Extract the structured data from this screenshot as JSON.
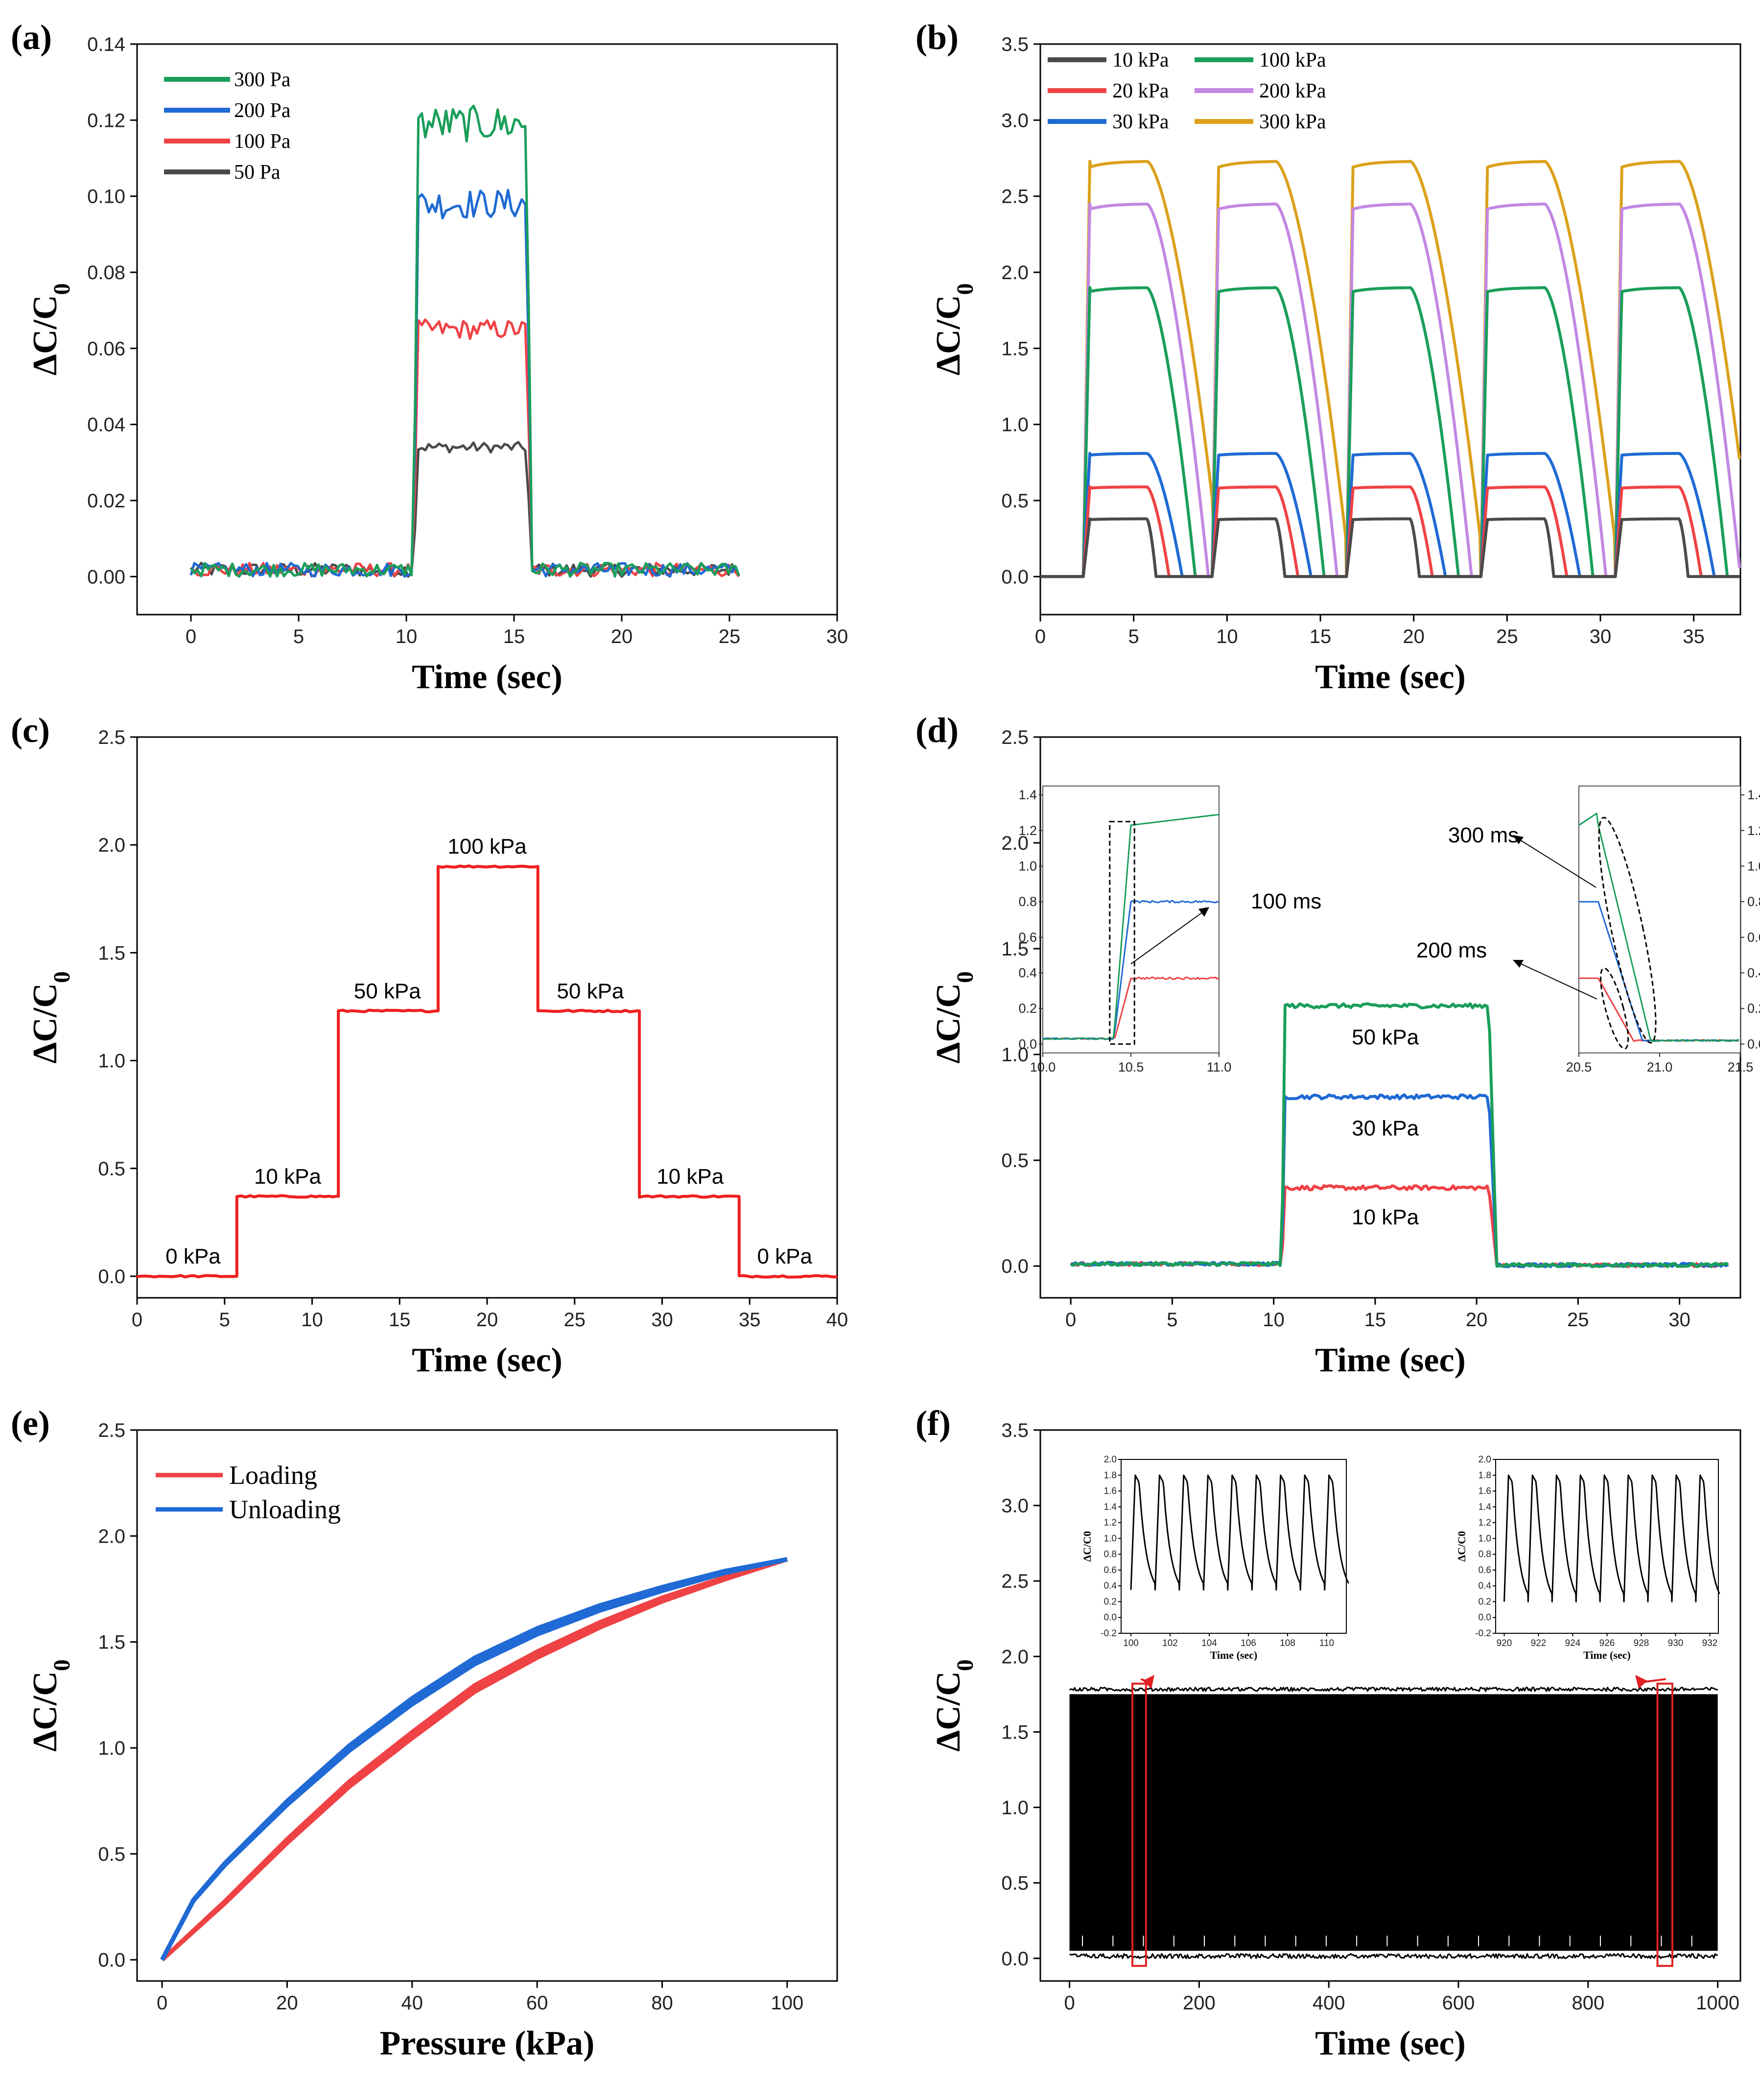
{
  "chart_data": [
    {
      "id": "a",
      "panel_label": "(a)",
      "type": "line",
      "xlabel": "Time (sec)",
      "ylabel": "ΔC/C0",
      "xlim": [
        -2.5,
        30
      ],
      "ylim": [
        -0.01,
        0.14
      ],
      "xticks": [
        "0",
        "5",
        "10",
        "15",
        "20",
        "25",
        "30"
      ],
      "yticks": [
        "0.00",
        "0.02",
        "0.04",
        "0.06",
        "0.08",
        "0.10",
        "0.12",
        "0.14"
      ],
      "legend": "top-left",
      "pulse": {
        "start": 10.3,
        "end": 15.6,
        "duration": 25.5
      },
      "series": [
        {
          "name": "300 Pa",
          "color": "#1a9e5a",
          "plateau": 0.119
        },
        {
          "name": "200 Pa",
          "color": "#1f6ad4",
          "plateau": 0.098
        },
        {
          "name": "100 Pa",
          "color": "#ef4245",
          "plateau": 0.065
        },
        {
          "name": "50 Pa",
          "color": "#4a4a4a",
          "plateau": 0.034
        }
      ]
    },
    {
      "id": "b",
      "panel_label": "(b)",
      "type": "line",
      "xlabel": "Time (sec)",
      "ylabel": "ΔC/C0",
      "xlim": [
        0,
        37.5
      ],
      "ylim": [
        -0.25,
        3.5
      ],
      "xticks": [
        "0",
        "5",
        "10",
        "15",
        "20",
        "25",
        "30",
        "35"
      ],
      "yticks": [
        "0.0",
        "0.5",
        "1.0",
        "1.5",
        "2.0",
        "2.5",
        "3.0",
        "3.5"
      ],
      "legend": "top-left",
      "cycle_starts": [
        2.3,
        9.2,
        16.4,
        23.6,
        30.8
      ],
      "hold": 3.4,
      "series": [
        {
          "name": "10 kPa",
          "color": "#4a4a4a",
          "plateau": 0.38
        },
        {
          "name": "20 kPa",
          "color": "#ef4245",
          "plateau": 0.59
        },
        {
          "name": "30 kPa",
          "color": "#1f6ad4",
          "plateau": 0.81
        },
        {
          "name": "100 kPa",
          "color": "#1a9e5a",
          "plateau": 1.9
        },
        {
          "name": "200 kPa",
          "color": "#c387e3",
          "plateau": 2.45
        },
        {
          "name": "300 kPa",
          "color": "#dba11b",
          "plateau": 2.73
        }
      ]
    },
    {
      "id": "c",
      "panel_label": "(c)",
      "type": "line",
      "xlabel": "Time (sec)",
      "ylabel": "ΔC/C0",
      "xlim": [
        0,
        40
      ],
      "ylim": [
        -0.1,
        2.5
      ],
      "xticks": [
        "0",
        "5",
        "10",
        "15",
        "20",
        "25",
        "30",
        "35",
        "40"
      ],
      "yticks": [
        "0.0",
        "0.5",
        "1.0",
        "1.5",
        "2.0",
        "2.5"
      ],
      "color": "#ef2020",
      "steps": [
        {
          "x0": 0,
          "x1": 5.7,
          "y": 0.0
        },
        {
          "x0": 5.7,
          "x1": 11.5,
          "y": 0.37
        },
        {
          "x0": 11.5,
          "x1": 17.2,
          "y": 1.23
        },
        {
          "x0": 17.2,
          "x1": 22.9,
          "y": 1.9
        },
        {
          "x0": 22.9,
          "x1": 28.7,
          "y": 1.23
        },
        {
          "x0": 28.7,
          "x1": 34.4,
          "y": 0.37
        },
        {
          "x0": 34.4,
          "x1": 40,
          "y": 0.0
        }
      ],
      "annotations": [
        {
          "text": "0 kPa",
          "x": 3.2,
          "y": 0.05
        },
        {
          "text": "10 kPa",
          "x": 8.6,
          "y": 0.42
        },
        {
          "text": "50 kPa",
          "x": 14.3,
          "y": 1.28
        },
        {
          "text": "100 kPa",
          "x": 20.0,
          "y": 1.95
        },
        {
          "text": "50 kPa",
          "x": 25.9,
          "y": 1.28
        },
        {
          "text": "10 kPa",
          "x": 31.6,
          "y": 0.42
        },
        {
          "text": "0 kPa",
          "x": 37.0,
          "y": 0.05
        }
      ]
    },
    {
      "id": "d",
      "panel_label": "(d)",
      "type": "line",
      "xlabel": "Time (sec)",
      "ylabel": "ΔC/C0",
      "xlim": [
        -1.5,
        33
      ],
      "ylim": [
        -0.15,
        2.5
      ],
      "xticks": [
        "0",
        "5",
        "10",
        "15",
        "20",
        "25",
        "30"
      ],
      "yticks": [
        "0.0",
        "0.5",
        "1.0",
        "1.5",
        "2.0",
        "2.5"
      ],
      "pulse": {
        "start": 10.4,
        "end": 20.6,
        "duration": 32.5
      },
      "series": [
        {
          "name": "10 kPa",
          "color": "#ef4245",
          "plateau": 0.37
        },
        {
          "name": "30 kPa",
          "color": "#1f6ad4",
          "plateau": 0.8
        },
        {
          "name": "50 kPa",
          "color": "#1a9e5a",
          "plateau": 1.23
        }
      ],
      "labels": [
        {
          "text": "50 kPa",
          "x": 15.5,
          "y": 1.08
        },
        {
          "text": "30 kPa",
          "x": 15.5,
          "y": 0.65
        },
        {
          "text": "10 kPa",
          "x": 15.5,
          "y": 0.23
        }
      ],
      "insets": [
        {
          "id": "rise",
          "xlim": [
            10.0,
            11.0
          ],
          "ylim": [
            -0.05,
            1.45
          ],
          "xticks": [
            "10.0",
            "10.5",
            "11.0"
          ],
          "yticks": [
            "0.0",
            "0.2",
            "0.4",
            "0.6",
            "0.8",
            "1.0",
            "1.2",
            "1.4"
          ],
          "annotation": "100 ms"
        },
        {
          "id": "fall",
          "xlim": [
            20.5,
            21.5
          ],
          "ylim": [
            -0.05,
            1.45
          ],
          "xticks": [
            "20.5",
            "21.0",
            "21.5"
          ],
          "yticks": [
            "0.0",
            "0.2",
            "0.4",
            "0.6",
            "0.8",
            "1.0",
            "1.2",
            "1.4"
          ],
          "annotations": [
            "300 ms",
            "200 ms"
          ]
        }
      ]
    },
    {
      "id": "e",
      "panel_label": "(e)",
      "type": "line",
      "xlabel": "Pressure (kPa)",
      "ylabel": "ΔC/C0",
      "xlim": [
        -4,
        108
      ],
      "ylim": [
        -0.1,
        2.5
      ],
      "xticks": [
        "0",
        "20",
        "40",
        "60",
        "80",
        "100"
      ],
      "yticks": [
        "0.0",
        "0.5",
        "1.0",
        "1.5",
        "2.0",
        "2.5"
      ],
      "legend": "top-left",
      "series": [
        {
          "name": "Loading",
          "color": "#ef4245",
          "x": [
            0,
            10,
            20,
            30,
            40,
            50,
            60,
            70,
            80,
            90,
            100
          ],
          "y": [
            0.0,
            0.27,
            0.56,
            0.83,
            1.06,
            1.28,
            1.44,
            1.58,
            1.7,
            1.8,
            1.89
          ]
        },
        {
          "name": "Unloading",
          "color": "#1f6ad4",
          "x": [
            0,
            5,
            10,
            20,
            30,
            40,
            50,
            60,
            70,
            80,
            90,
            100
          ],
          "y": [
            0.0,
            0.28,
            0.45,
            0.74,
            1.0,
            1.22,
            1.41,
            1.55,
            1.66,
            1.75,
            1.83,
            1.89
          ]
        }
      ]
    },
    {
      "id": "f",
      "panel_label": "(f)",
      "type": "line",
      "xlabel": "Time (sec)",
      "ylabel": "ΔC/C0",
      "xlim": [
        -45,
        1035
      ],
      "ylim": [
        -0.15,
        3.5
      ],
      "xticks": [
        "0",
        "200",
        "400",
        "600",
        "800",
        "1000"
      ],
      "yticks": [
        "0.0",
        "0.5",
        "1.0",
        "1.5",
        "2.0",
        "2.5",
        "3.0",
        "3.5"
      ],
      "color": "#000000",
      "band": {
        "x0": 0,
        "x1": 1000,
        "low": 0.05,
        "high": 1.75
      },
      "highlights": [
        {
          "x0": 97,
          "x1": 118,
          "y0": -0.05,
          "y1": 1.82
        },
        {
          "x0": 907,
          "x1": 930,
          "y0": -0.05,
          "y1": 1.82
        }
      ],
      "insets": [
        {
          "id": "early",
          "xlim": [
            99.5,
            111
          ],
          "ylim": [
            -0.2,
            2.0
          ],
          "xticks": [
            "100",
            "102",
            "104",
            "106",
            "108",
            "110"
          ],
          "yticks": [
            "-0.2",
            "0.0",
            "0.2",
            "0.4",
            "0.6",
            "0.8",
            "1.0",
            "1.2",
            "1.4",
            "1.6",
            "1.8",
            "2.0"
          ],
          "xlabel": "Time (sec)",
          "ylabel": "ΔC/C0",
          "peak": 1.8,
          "trough": 0.25
        },
        {
          "id": "late",
          "xlim": [
            919.5,
            932.5
          ],
          "ylim": [
            -0.2,
            2.0
          ],
          "xticks": [
            "920",
            "922",
            "924",
            "926",
            "928",
            "930",
            "932"
          ],
          "yticks": [
            "-0.2",
            "0.0",
            "0.2",
            "0.4",
            "0.6",
            "0.8",
            "1.0",
            "1.2",
            "1.4",
            "1.6",
            "1.8",
            "2.0"
          ],
          "xlabel": "Time (sec)",
          "ylabel": "ΔC/C0",
          "peak": 1.8,
          "trough": 0.1
        }
      ]
    }
  ]
}
